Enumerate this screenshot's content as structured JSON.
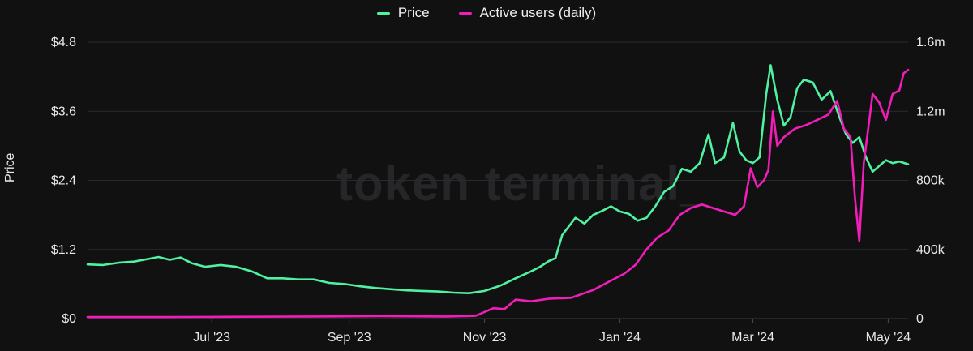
{
  "legend": {
    "items": [
      {
        "label": "Price",
        "color": "#4ef2a0"
      },
      {
        "label": "Active users (daily)",
        "color": "#f21db8"
      }
    ]
  },
  "watermark": "token terminal_",
  "chart_data": {
    "type": "line",
    "title": "",
    "xlabel": "",
    "ylabel": "Price",
    "x_range": [
      "2023-05-06",
      "2024-05-10"
    ],
    "x_ticks": [
      {
        "date": "2023-07-01",
        "label": "Jul '23"
      },
      {
        "date": "2023-09-01",
        "label": "Sep '23"
      },
      {
        "date": "2023-11-01",
        "label": "Nov '23"
      },
      {
        "date": "2024-01-01",
        "label": "Jan '24"
      },
      {
        "date": "2024-03-01",
        "label": "Mar '24"
      },
      {
        "date": "2024-05-01",
        "label": "May '24"
      }
    ],
    "y_left": {
      "label": "Price",
      "range": [
        0,
        4.8
      ],
      "ticks": [
        0,
        1.2,
        2.4,
        3.6,
        4.8
      ],
      "tick_labels": [
        "$0",
        "$1.2",
        "$2.4",
        "$3.6",
        "$4.8"
      ]
    },
    "y_right": {
      "range": [
        0,
        1600000
      ],
      "ticks": [
        0,
        400000,
        800000,
        1200000,
        1600000
      ],
      "tick_labels": [
        "0",
        "400k",
        "800k",
        "1.2m",
        "1.6m"
      ]
    },
    "grid": true,
    "legend_position": "top-center",
    "series": [
      {
        "name": "Price",
        "axis": "left",
        "color": "#4ef2a0",
        "points": [
          [
            "2023-05-06",
            0.94
          ],
          [
            "2023-05-13",
            0.93
          ],
          [
            "2023-05-20",
            0.97
          ],
          [
            "2023-05-27",
            0.99
          ],
          [
            "2023-06-03",
            1.04
          ],
          [
            "2023-06-07",
            1.07
          ],
          [
            "2023-06-12",
            1.02
          ],
          [
            "2023-06-17",
            1.06
          ],
          [
            "2023-06-22",
            0.96
          ],
          [
            "2023-06-28",
            0.9
          ],
          [
            "2023-07-05",
            0.93
          ],
          [
            "2023-07-12",
            0.9
          ],
          [
            "2023-07-19",
            0.82
          ],
          [
            "2023-07-26",
            0.7
          ],
          [
            "2023-08-02",
            0.7
          ],
          [
            "2023-08-09",
            0.68
          ],
          [
            "2023-08-16",
            0.68
          ],
          [
            "2023-08-23",
            0.62
          ],
          [
            "2023-08-30",
            0.6
          ],
          [
            "2023-09-06",
            0.56
          ],
          [
            "2023-09-13",
            0.53
          ],
          [
            "2023-09-20",
            0.51
          ],
          [
            "2023-09-27",
            0.49
          ],
          [
            "2023-10-04",
            0.48
          ],
          [
            "2023-10-11",
            0.47
          ],
          [
            "2023-10-18",
            0.45
          ],
          [
            "2023-10-25",
            0.44
          ],
          [
            "2023-11-01",
            0.48
          ],
          [
            "2023-11-08",
            0.57
          ],
          [
            "2023-11-15",
            0.7
          ],
          [
            "2023-11-22",
            0.82
          ],
          [
            "2023-11-26",
            0.9
          ],
          [
            "2023-11-30",
            1.0
          ],
          [
            "2023-12-03",
            1.05
          ],
          [
            "2023-12-06",
            1.45
          ],
          [
            "2023-12-09",
            1.6
          ],
          [
            "2023-12-12",
            1.75
          ],
          [
            "2023-12-16",
            1.65
          ],
          [
            "2023-12-20",
            1.8
          ],
          [
            "2023-12-24",
            1.87
          ],
          [
            "2023-12-28",
            1.95
          ],
          [
            "2024-01-01",
            1.86
          ],
          [
            "2024-01-05",
            1.82
          ],
          [
            "2024-01-09",
            1.7
          ],
          [
            "2024-01-13",
            1.75
          ],
          [
            "2024-01-17",
            1.95
          ],
          [
            "2024-01-21",
            2.2
          ],
          [
            "2024-01-25",
            2.3
          ],
          [
            "2024-01-29",
            2.6
          ],
          [
            "2024-02-02",
            2.55
          ],
          [
            "2024-02-06",
            2.7
          ],
          [
            "2024-02-10",
            3.2
          ],
          [
            "2024-02-13",
            2.7
          ],
          [
            "2024-02-17",
            2.8
          ],
          [
            "2024-02-21",
            3.4
          ],
          [
            "2024-02-24",
            2.9
          ],
          [
            "2024-02-27",
            2.75
          ],
          [
            "2024-03-01",
            2.7
          ],
          [
            "2024-03-04",
            2.8
          ],
          [
            "2024-03-07",
            3.9
          ],
          [
            "2024-03-09",
            4.4
          ],
          [
            "2024-03-12",
            3.8
          ],
          [
            "2024-03-15",
            3.35
          ],
          [
            "2024-03-18",
            3.5
          ],
          [
            "2024-03-21",
            4.0
          ],
          [
            "2024-03-24",
            4.15
          ],
          [
            "2024-03-28",
            4.1
          ],
          [
            "2024-04-01",
            3.8
          ],
          [
            "2024-04-05",
            3.95
          ],
          [
            "2024-04-09",
            3.5
          ],
          [
            "2024-04-12",
            3.2
          ],
          [
            "2024-04-15",
            3.05
          ],
          [
            "2024-04-18",
            3.15
          ],
          [
            "2024-04-21",
            2.8
          ],
          [
            "2024-04-24",
            2.55
          ],
          [
            "2024-04-27",
            2.65
          ],
          [
            "2024-04-30",
            2.75
          ],
          [
            "2024-05-03",
            2.7
          ],
          [
            "2024-05-06",
            2.73
          ],
          [
            "2024-05-10",
            2.68
          ]
        ]
      },
      {
        "name": "Active users (daily)",
        "axis": "right",
        "color": "#f21db8",
        "points": [
          [
            "2023-05-06",
            9000
          ],
          [
            "2023-06-10",
            9000
          ],
          [
            "2023-07-15",
            11000
          ],
          [
            "2023-08-15",
            12000
          ],
          [
            "2023-09-15",
            14000
          ],
          [
            "2023-10-15",
            12000
          ],
          [
            "2023-10-28",
            16000
          ],
          [
            "2023-11-05",
            60000
          ],
          [
            "2023-11-10",
            55000
          ],
          [
            "2023-11-15",
            110000
          ],
          [
            "2023-11-22",
            100000
          ],
          [
            "2023-11-30",
            115000
          ],
          [
            "2023-12-10",
            120000
          ],
          [
            "2023-12-20",
            165000
          ],
          [
            "2023-12-28",
            220000
          ],
          [
            "2024-01-03",
            260000
          ],
          [
            "2024-01-08",
            310000
          ],
          [
            "2024-01-13",
            400000
          ],
          [
            "2024-01-18",
            470000
          ],
          [
            "2024-01-23",
            510000
          ],
          [
            "2024-01-28",
            600000
          ],
          [
            "2024-02-02",
            640000
          ],
          [
            "2024-02-07",
            660000
          ],
          [
            "2024-02-12",
            640000
          ],
          [
            "2024-02-17",
            620000
          ],
          [
            "2024-02-22",
            600000
          ],
          [
            "2024-02-26",
            650000
          ],
          [
            "2024-02-29",
            870000
          ],
          [
            "2024-03-03",
            760000
          ],
          [
            "2024-03-06",
            800000
          ],
          [
            "2024-03-08",
            860000
          ],
          [
            "2024-03-10",
            1200000
          ],
          [
            "2024-03-12",
            1000000
          ],
          [
            "2024-03-15",
            1050000
          ],
          [
            "2024-03-20",
            1100000
          ],
          [
            "2024-03-25",
            1120000
          ],
          [
            "2024-03-30",
            1150000
          ],
          [
            "2024-04-04",
            1180000
          ],
          [
            "2024-04-08",
            1260000
          ],
          [
            "2024-04-11",
            1100000
          ],
          [
            "2024-04-14",
            1050000
          ],
          [
            "2024-04-16",
            700000
          ],
          [
            "2024-04-18",
            450000
          ],
          [
            "2024-04-20",
            900000
          ],
          [
            "2024-04-22",
            1100000
          ],
          [
            "2024-04-24",
            1300000
          ],
          [
            "2024-04-27",
            1250000
          ],
          [
            "2024-04-30",
            1150000
          ],
          [
            "2024-05-03",
            1300000
          ],
          [
            "2024-05-06",
            1320000
          ],
          [
            "2024-05-08",
            1420000
          ],
          [
            "2024-05-10",
            1440000
          ]
        ]
      }
    ]
  }
}
